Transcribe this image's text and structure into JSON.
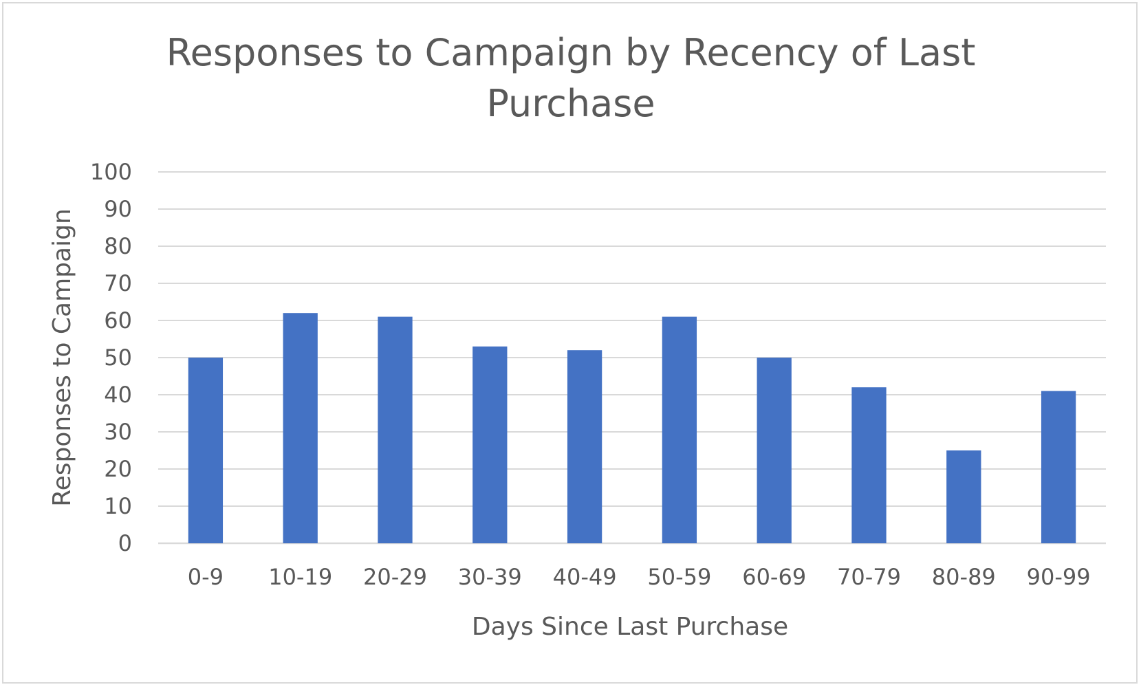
{
  "chart_data": {
    "type": "bar",
    "title": "Responses to Campaign by Recency of Last Purchase",
    "xlabel": "Days Since Last Purchase",
    "ylabel": "Responses to Campaign",
    "categories": [
      "0-9",
      "10-19",
      "20-29",
      "30-39",
      "40-49",
      "50-59",
      "60-69",
      "70-79",
      "80-89",
      "90-99"
    ],
    "values": [
      50,
      62,
      61,
      53,
      52,
      61,
      50,
      42,
      25,
      41
    ],
    "ylim": [
      0,
      100
    ],
    "yticks": [
      0,
      10,
      20,
      30,
      40,
      50,
      60,
      70,
      80,
      90,
      100
    ],
    "grid": true,
    "legend": "none",
    "bar_color": "#4472c4",
    "grid_color": "#d9d9d9",
    "text_color": "#595959"
  }
}
